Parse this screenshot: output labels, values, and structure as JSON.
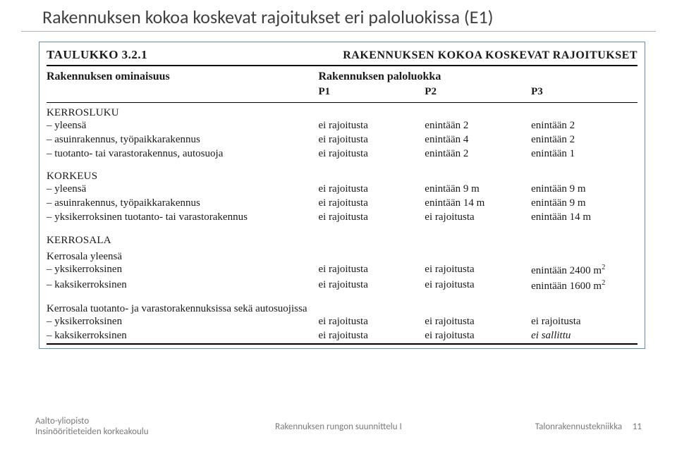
{
  "slide": {
    "title": "Rakennuksen kokoa koskevat rajoitukset eri paloluokissa (E1)"
  },
  "table": {
    "header_left": "TAULUKKO 3.2.1",
    "header_right": "RAKENNUKSEN KOKOA KOSKEVAT RAJOITUKSET",
    "sub_left": "Rakennuksen ominaisuus",
    "sub_right": "Rakennuksen paloluokka",
    "cols": {
      "p1": "P1",
      "p2": "P2",
      "p3": "P3"
    },
    "sections": [
      {
        "heading": "KERROSLUKU",
        "sub": null,
        "rows": [
          {
            "label": "– yleensä",
            "p1": "ei rajoitusta",
            "p2": "enintään 2",
            "p3": "enintään 2"
          },
          {
            "label": "– asuinrakennus, työpaikkarakennus",
            "p1": "ei rajoitusta",
            "p2": "enintään 4",
            "p3": "enintään 2"
          },
          {
            "label": "– tuotanto- tai varastorakennus, autosuoja",
            "p1": "ei rajoitusta",
            "p2": "enintään 2",
            "p3": "enintään 1"
          }
        ]
      },
      {
        "heading": "KORKEUS",
        "sub": null,
        "rows": [
          {
            "label": "– yleensä",
            "p1": "ei rajoitusta",
            "p2": "enintään 9 m",
            "p3": "enintään 9 m"
          },
          {
            "label": "– asuinrakennus, työpaikkarakennus",
            "p1": "ei rajoitusta",
            "p2": "enintään 14 m",
            "p3": "enintään 9 m"
          },
          {
            "label": "– yksikerroksinen tuotanto- tai varastorakennus",
            "p1": "ei rajoitusta",
            "p2": "ei rajoitusta",
            "p3": "enintään 14 m"
          }
        ]
      },
      {
        "heading": "KERROSALA",
        "sub": "Kerrosala yleensä",
        "rows": [
          {
            "label": "– yksikerroksinen",
            "p1": "ei rajoitusta",
            "p2": "ei rajoitusta",
            "p3_html": "enintään 2400 m²"
          },
          {
            "label": "– kaksikerroksinen",
            "p1": "ei rajoitusta",
            "p2": "ei rajoitusta",
            "p3_html": "enintään 1600 m²"
          }
        ]
      },
      {
        "heading": null,
        "sub": "Kerrosala tuotanto- ja varastorakennuksissa sekä autosuojissa",
        "rows": [
          {
            "label": "– yksikerroksinen",
            "p1": "ei rajoitusta",
            "p2": "ei rajoitusta",
            "p3": "ei rajoitusta"
          },
          {
            "label": "– kaksikerroksinen",
            "p1": "ei rajoitusta",
            "p2": "ei rajoitusta",
            "p3_italic": "ei sallittu"
          }
        ]
      }
    ]
  },
  "footer": {
    "uni1": "Aalto-yliopisto",
    "uni2": "Insinööritieteiden korkeakoulu",
    "mid": "Rakennuksen rungon suunnittelu I",
    "right": "Talonrakennustekniikka",
    "page": "11"
  }
}
